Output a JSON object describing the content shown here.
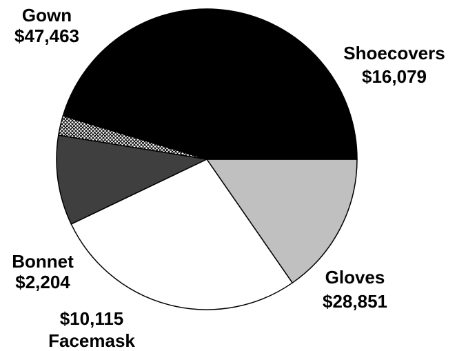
{
  "chart_data": {
    "type": "pie",
    "slices": [
      {
        "name": "Shoecovers",
        "value": 16079,
        "value_label": "$16,079",
        "color": "#c0c0c0",
        "pattern": "solid"
      },
      {
        "name": "Gloves",
        "value": 28851,
        "value_label": "$28,851",
        "color": "#ffffff",
        "pattern": "solid"
      },
      {
        "name": "Facemask",
        "value": 10115,
        "value_label": "$10,115",
        "color": "#3f3f3f",
        "pattern": "solid"
      },
      {
        "name": "Bonnet",
        "value": 2204,
        "value_label": "$2,204",
        "color": "#ffffff",
        "pattern": "crosshatch"
      },
      {
        "name": "Gown",
        "value": 47463,
        "value_label": "$47,463",
        "color": "#000000",
        "pattern": "solid"
      }
    ],
    "start_angle_deg": 0,
    "direction": "clockwise",
    "outline_color": "#000000"
  }
}
